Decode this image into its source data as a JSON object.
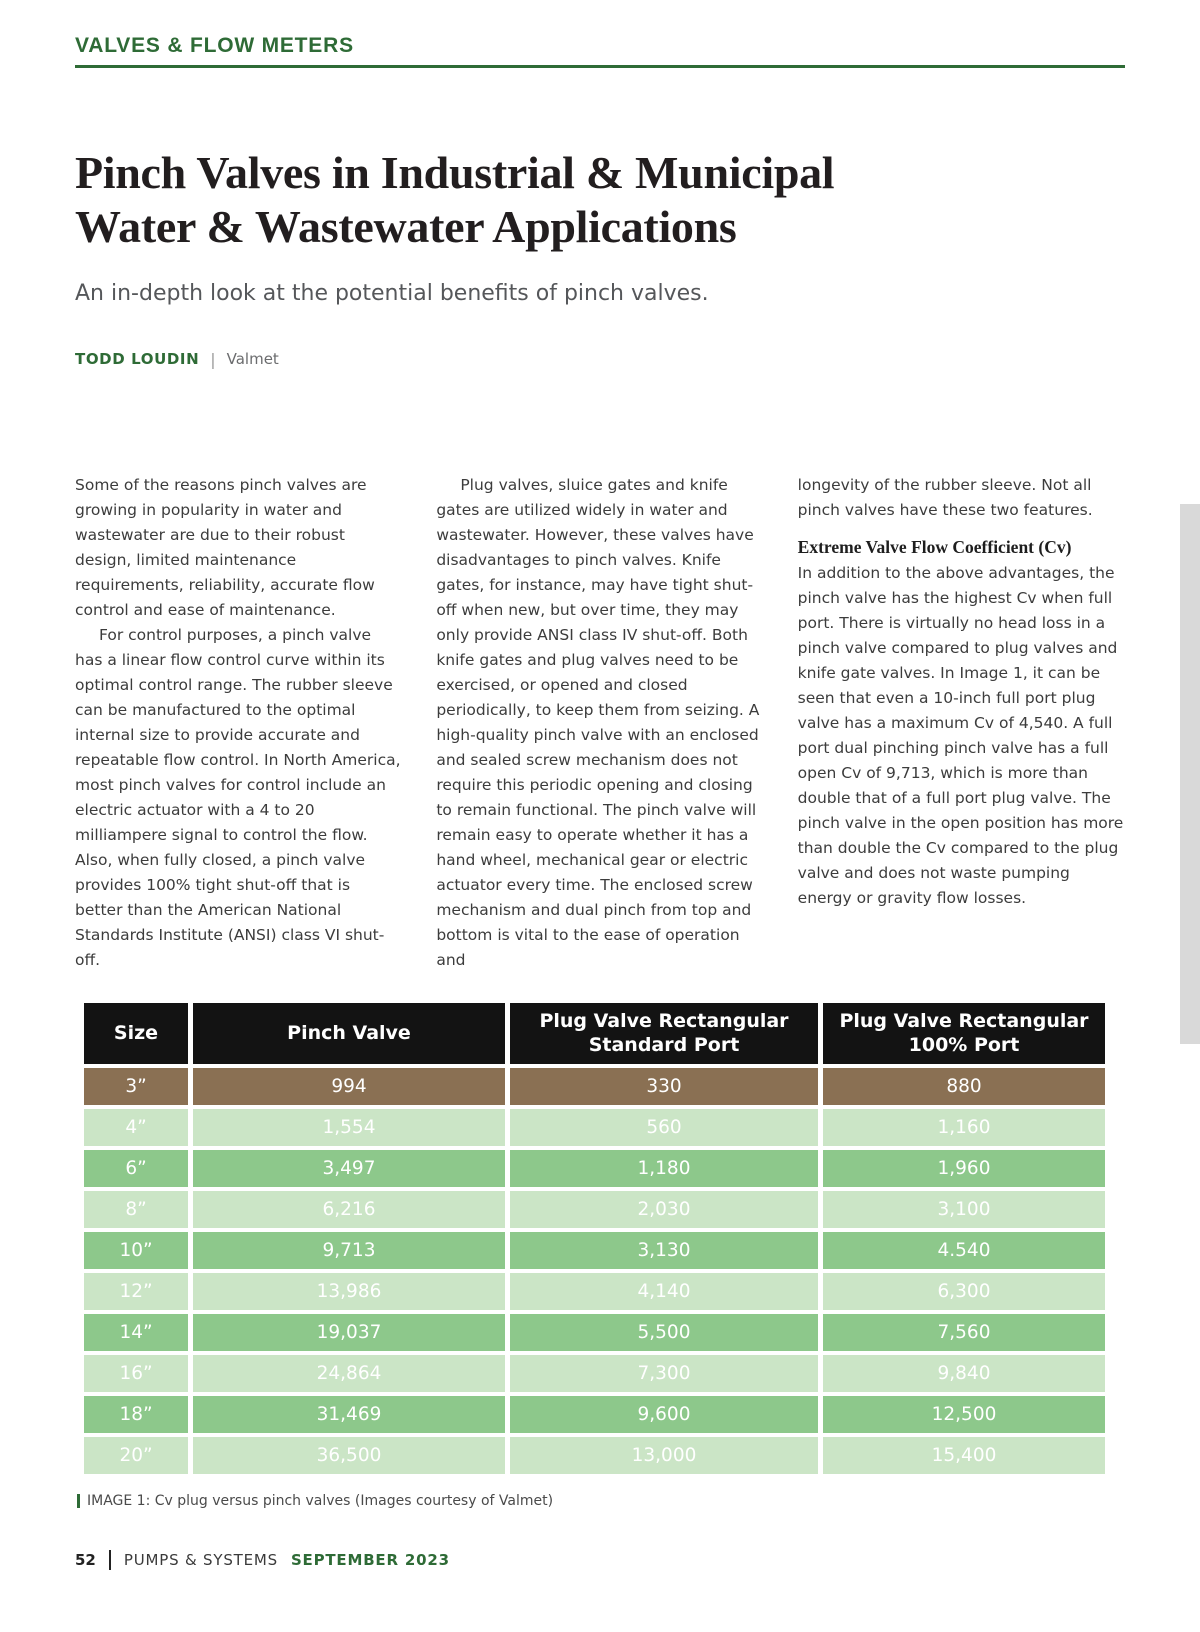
{
  "page": {
    "kicker": "VALVES & FLOW METERS",
    "title_lines": [
      "Pinch Valves in Industrial & Municipal",
      "Water & Wastewater Applications"
    ],
    "subtitle": "An in-depth look at the potential benefits of pinch valves.",
    "byline": {
      "author": "TODD LOUDIN",
      "separator": "|",
      "affiliation": "Valmet"
    }
  },
  "article": {
    "columns": [
      {
        "blocks": [
          {
            "type": "p",
            "indent": false,
            "text": "Some of the reasons pinch valves are growing in popularity in water and wastewater are due to their robust design, limited maintenance requirements, reliability, accurate flow control and ease of maintenance."
          },
          {
            "type": "p",
            "indent": true,
            "text": "For control purposes, a pinch valve has a linear flow control curve within its optimal control range. The rubber sleeve can be manufactured to the optimal internal size to provide accurate and repeatable flow control. In North America, most pinch valves for control include an electric actuator with a 4 to 20 milliampere signal to control the flow. Also, when fully closed, a pinch valve provides 100% tight shut-off that is better than the American National Standards Institute (ANSI) class VI shut-off."
          }
        ]
      },
      {
        "blocks": [
          {
            "type": "p",
            "indent": true,
            "text": "Plug valves, sluice gates and knife gates are utilized widely in water and wastewater. However, these valves have disadvantages to pinch valves. Knife gates, for instance, may have tight shut-off when new, but over time, they may only provide ANSI class IV shut-off. Both knife gates and plug valves need to be exercised, or opened and closed periodically, to keep them from seizing. A high-quality pinch valve with an enclosed and sealed screw mechanism does not require this periodic opening and closing to remain functional. The pinch valve will remain easy to operate whether it has a hand wheel, mechanical gear or electric actuator every time. The enclosed screw mechanism and dual pinch from top and bottom is vital to the ease of operation and"
          }
        ]
      },
      {
        "blocks": [
          {
            "type": "p",
            "indent": false,
            "text": "longevity of the rubber sleeve. Not all pinch valves have these two features."
          },
          {
            "type": "h3",
            "text": "Extreme Valve Flow Coefficient (Cv)"
          },
          {
            "type": "p",
            "indent": false,
            "text": "In addition to the above advantages, the pinch valve has the highest Cv when full port. There is virtually no head loss in a pinch valve compared to plug valves and knife gate valves. In Image 1, it can be seen that even a 10-inch full port plug valve has a maximum Cv of 4,540. A full port dual pinching pinch valve has a full open Cv of 9,713, which is more than double that of a full port plug valve. The pinch valve in the open position has more than double the Cv compared to the plug valve and does not waste pumping energy or gravity flow losses."
          }
        ]
      }
    ]
  },
  "table": {
    "headers": [
      "Size",
      "Pinch Valve",
      "Plug Valve Rectangular Standard Port",
      "Plug Valve Rectangular 100% Port"
    ],
    "rows": [
      {
        "size": "3”",
        "values": [
          "994",
          "330",
          "880"
        ],
        "style": "brown"
      },
      {
        "size": "4”",
        "values": [
          "1,554",
          "560",
          "1,160"
        ],
        "style": "light"
      },
      {
        "size": "6”",
        "values": [
          "3,497",
          "1,180",
          "1,960"
        ],
        "style": "dark"
      },
      {
        "size": "8”",
        "values": [
          "6,216",
          "2,030",
          "3,100"
        ],
        "style": "light"
      },
      {
        "size": "10”",
        "values": [
          "9,713",
          "3,130",
          "4.540"
        ],
        "style": "dark"
      },
      {
        "size": "12”",
        "values": [
          "13,986",
          "4,140",
          "6,300"
        ],
        "style": "light"
      },
      {
        "size": "14”",
        "values": [
          "19,037",
          "5,500",
          "7,560"
        ],
        "style": "dark"
      },
      {
        "size": "16”",
        "values": [
          "24,864",
          "7,300",
          "9,840"
        ],
        "style": "light"
      },
      {
        "size": "18”",
        "values": [
          "31,469",
          "9,600",
          "12,500"
        ],
        "style": "dark"
      },
      {
        "size": "20”",
        "values": [
          "36,500",
          "13,000",
          "15,400"
        ],
        "style": "light"
      }
    ]
  },
  "caption": "IMAGE 1: Cv plug versus pinch valves (Images courtesy of Valmet)",
  "footer": {
    "page_number": "52",
    "magazine": "PUMPS & SYSTEMS",
    "issue": "SEPTEMBER 2023"
  },
  "colors": {
    "green": "#2e6b36",
    "brown_row": "#8a7053",
    "light_green_row": "#cbe5c6",
    "dark_green_row": "#8dc88b",
    "table_header_bg": "#131313"
  }
}
